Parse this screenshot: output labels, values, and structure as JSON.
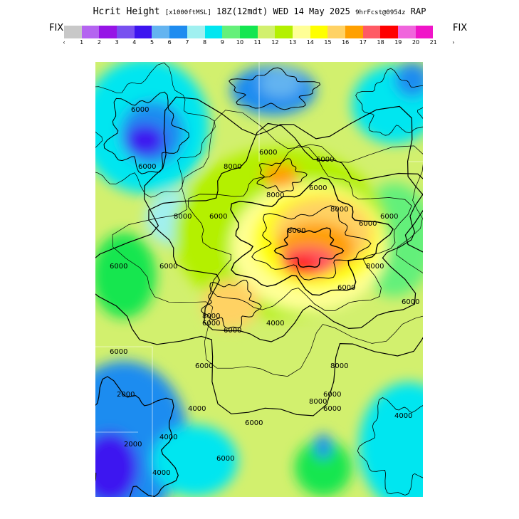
{
  "header": {
    "title_main": "Hcrit Height",
    "title_units": "[x1000ftMSL]",
    "title_time": "18Z(12mdt) WED 14 May 2025",
    "title_fcst": "9hrFcst@0954z",
    "title_model": "RAP",
    "fix_left": "FIX",
    "fix_right": "FIX"
  },
  "legend": {
    "colors": [
      "#c8c8c8",
      "#b464f0",
      "#9614e6",
      "#7850f0",
      "#3c14f0",
      "#64b4f0",
      "#1e8cf0",
      "#a0f0f0",
      "#00e6f0",
      "#64f07a",
      "#14e650",
      "#d2f06e",
      "#b4f000",
      "#ffff96",
      "#ffff00",
      "#ffd264",
      "#ffa000",
      "#ff5a64",
      "#ff0000",
      "#f064dc",
      "#f014c8"
    ],
    "left_arrow": "‹",
    "right_arrow": "›",
    "tick_labels": [
      "1",
      "2",
      "3",
      "4",
      "5",
      "6",
      "7",
      "8",
      "9",
      "10",
      "11",
      "12",
      "13",
      "14",
      "15",
      "16",
      "17",
      "18",
      "19",
      "20",
      "21"
    ]
  },
  "map": {
    "contour_labels": [
      "6000",
      "6000",
      "8000",
      "8000",
      "6000",
      "6000",
      "8000",
      "8000",
      "8000",
      "6000",
      "6000",
      "8000",
      "6000",
      "6000",
      "6000",
      "6000",
      "8000",
      "6000",
      "4000",
      "6000",
      "6000",
      "8000",
      "8000",
      "6000",
      "6000",
      "6000",
      "6000",
      "2000",
      "2000",
      "4000",
      "4000",
      "6000",
      "6000",
      "6000",
      "4000",
      "4000"
    ]
  }
}
